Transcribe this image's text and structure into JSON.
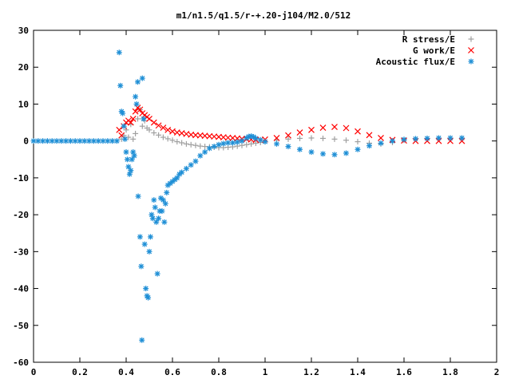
{
  "chart_data": {
    "type": "scatter",
    "title": "m1/n1.5/q1.5/r-+.20-j104/M2.0/512",
    "xlabel": "",
    "ylabel": "",
    "xlim": [
      0,
      2
    ],
    "ylim": [
      -60,
      30
    ],
    "x_ticks": [
      "0",
      "0.2",
      "0.4",
      "0.6",
      "0.8",
      "1",
      "1.2",
      "1.4",
      "1.6",
      "1.8",
      "2"
    ],
    "y_ticks": [
      "30",
      "20",
      "10",
      "0",
      "-10",
      "-20",
      "-30",
      "-40",
      "-50",
      "-60"
    ],
    "legend_position": "top-right",
    "grid": false,
    "series": [
      {
        "name": "R stress/E",
        "marker": "plus",
        "color": "#a0a0a0",
        "points": [
          [
            0.38,
            0.5
          ],
          [
            0.39,
            1.5
          ],
          [
            0.4,
            3.0
          ],
          [
            0.41,
            1.0
          ],
          [
            0.42,
            4.5
          ],
          [
            0.43,
            0.5
          ],
          [
            0.44,
            2.0
          ],
          [
            0.45,
            6.0
          ],
          [
            0.46,
            8.5
          ],
          [
            0.47,
            4.0
          ],
          [
            0.48,
            5.5
          ],
          [
            0.49,
            3.5
          ],
          [
            0.5,
            3.0
          ],
          [
            0.52,
            2.2
          ],
          [
            0.54,
            1.6
          ],
          [
            0.56,
            1.0
          ],
          [
            0.58,
            0.6
          ],
          [
            0.6,
            0.2
          ],
          [
            0.62,
            -0.2
          ],
          [
            0.64,
            -0.5
          ],
          [
            0.66,
            -0.8
          ],
          [
            0.68,
            -1.0
          ],
          [
            0.7,
            -1.2
          ],
          [
            0.72,
            -1.4
          ],
          [
            0.74,
            -1.5
          ],
          [
            0.76,
            -1.6
          ],
          [
            0.78,
            -1.7
          ],
          [
            0.8,
            -1.8
          ],
          [
            0.82,
            -1.8
          ],
          [
            0.84,
            -1.7
          ],
          [
            0.86,
            -1.6
          ],
          [
            0.88,
            -1.4
          ],
          [
            0.9,
            -1.2
          ],
          [
            0.92,
            -1.0
          ],
          [
            0.94,
            -0.8
          ],
          [
            0.96,
            -0.6
          ],
          [
            0.98,
            -0.4
          ],
          [
            1.0,
            -0.2
          ],
          [
            1.05,
            0.2
          ],
          [
            1.1,
            0.5
          ],
          [
            1.15,
            0.7
          ],
          [
            1.2,
            0.8
          ],
          [
            1.25,
            0.7
          ],
          [
            1.3,
            0.5
          ],
          [
            1.35,
            0.2
          ],
          [
            1.4,
            -0.2
          ],
          [
            1.45,
            -0.6
          ],
          [
            1.5,
            -0.8
          ],
          [
            1.55,
            -0.4
          ],
          [
            1.6,
            0.2
          ],
          [
            1.65,
            0.5
          ],
          [
            1.7,
            0.6
          ],
          [
            1.75,
            0.7
          ],
          [
            1.8,
            0.7
          ],
          [
            1.85,
            0.7
          ]
        ]
      },
      {
        "name": "G work/E",
        "marker": "cross",
        "color": "#ff0000",
        "points": [
          [
            0.37,
            3.0
          ],
          [
            0.38,
            1.5
          ],
          [
            0.39,
            4.0
          ],
          [
            0.4,
            5.0
          ],
          [
            0.41,
            5.5
          ],
          [
            0.42,
            5.0
          ],
          [
            0.43,
            6.0
          ],
          [
            0.44,
            8.0
          ],
          [
            0.45,
            9.0
          ],
          [
            0.46,
            8.5
          ],
          [
            0.47,
            7.5
          ],
          [
            0.48,
            7.0
          ],
          [
            0.49,
            6.5
          ],
          [
            0.5,
            6.0
          ],
          [
            0.52,
            5.0
          ],
          [
            0.54,
            4.2
          ],
          [
            0.56,
            3.6
          ],
          [
            0.58,
            3.0
          ],
          [
            0.6,
            2.6
          ],
          [
            0.62,
            2.3
          ],
          [
            0.64,
            2.1
          ],
          [
            0.66,
            1.9
          ],
          [
            0.68,
            1.7
          ],
          [
            0.7,
            1.6
          ],
          [
            0.72,
            1.5
          ],
          [
            0.74,
            1.4
          ],
          [
            0.76,
            1.3
          ],
          [
            0.78,
            1.2
          ],
          [
            0.8,
            1.1
          ],
          [
            0.82,
            1.0
          ],
          [
            0.84,
            0.9
          ],
          [
            0.86,
            0.8
          ],
          [
            0.88,
            0.7
          ],
          [
            0.9,
            0.6
          ],
          [
            0.92,
            0.5
          ],
          [
            0.94,
            0.4
          ],
          [
            0.96,
            0.3
          ],
          [
            0.98,
            0.3
          ],
          [
            1.0,
            0.4
          ],
          [
            1.05,
            0.8
          ],
          [
            1.1,
            1.5
          ],
          [
            1.15,
            2.3
          ],
          [
            1.2,
            3.0
          ],
          [
            1.25,
            3.6
          ],
          [
            1.3,
            3.8
          ],
          [
            1.35,
            3.5
          ],
          [
            1.4,
            2.6
          ],
          [
            1.45,
            1.6
          ],
          [
            1.5,
            0.8
          ],
          [
            1.55,
            0.3
          ],
          [
            1.6,
            0.1
          ],
          [
            1.65,
            0.0
          ],
          [
            1.7,
            0.0
          ],
          [
            1.75,
            0.0
          ],
          [
            1.8,
            0.0
          ],
          [
            1.85,
            0.0
          ]
        ]
      },
      {
        "name": "Acoustic flux/E",
        "marker": "star",
        "color": "#1f8fd6",
        "points": [
          [
            0.0,
            0.0
          ],
          [
            0.02,
            0.0
          ],
          [
            0.04,
            0.0
          ],
          [
            0.06,
            0.0
          ],
          [
            0.08,
            0.0
          ],
          [
            0.1,
            0.0
          ],
          [
            0.12,
            0.0
          ],
          [
            0.14,
            0.0
          ],
          [
            0.16,
            0.0
          ],
          [
            0.18,
            0.0
          ],
          [
            0.2,
            0.0
          ],
          [
            0.22,
            0.0
          ],
          [
            0.24,
            0.0
          ],
          [
            0.26,
            0.0
          ],
          [
            0.28,
            0.0
          ],
          [
            0.3,
            0.0
          ],
          [
            0.32,
            0.0
          ],
          [
            0.34,
            0.0
          ],
          [
            0.36,
            0.0
          ],
          [
            0.37,
            24.0
          ],
          [
            0.375,
            15.0
          ],
          [
            0.38,
            8.0
          ],
          [
            0.385,
            7.5
          ],
          [
            0.39,
            4.0
          ],
          [
            0.395,
            0.5
          ],
          [
            0.4,
            -3.0
          ],
          [
            0.405,
            -5.0
          ],
          [
            0.41,
            -7.0
          ],
          [
            0.415,
            -9.0
          ],
          [
            0.42,
            -8.0
          ],
          [
            0.425,
            -5.0
          ],
          [
            0.43,
            -3.0
          ],
          [
            0.435,
            -4.0
          ],
          [
            0.44,
            12.0
          ],
          [
            0.445,
            10.0
          ],
          [
            0.45,
            16.0
          ],
          [
            0.452,
            -15.0
          ],
          [
            0.46,
            -26.0
          ],
          [
            0.465,
            -34.0
          ],
          [
            0.468,
            -54.0
          ],
          [
            0.47,
            17.0
          ],
          [
            0.475,
            6.0
          ],
          [
            0.48,
            -28.0
          ],
          [
            0.485,
            -40.0
          ],
          [
            0.49,
            -42.0
          ],
          [
            0.495,
            -42.5
          ],
          [
            0.5,
            -30.0
          ],
          [
            0.505,
            -26.0
          ],
          [
            0.51,
            -20.0
          ],
          [
            0.515,
            -21.0
          ],
          [
            0.52,
            -16.0
          ],
          [
            0.525,
            -18.0
          ],
          [
            0.53,
            -22.0
          ],
          [
            0.535,
            -36.0
          ],
          [
            0.54,
            -21.0
          ],
          [
            0.545,
            -19.0
          ],
          [
            0.55,
            -15.5
          ],
          [
            0.555,
            -19.0
          ],
          [
            0.56,
            -16.0
          ],
          [
            0.565,
            -22.0
          ],
          [
            0.57,
            -17.0
          ],
          [
            0.575,
            -14.0
          ],
          [
            0.58,
            -12.0
          ],
          [
            0.59,
            -11.5
          ],
          [
            0.6,
            -11.0
          ],
          [
            0.61,
            -10.5
          ],
          [
            0.62,
            -10.0
          ],
          [
            0.63,
            -9.0
          ],
          [
            0.64,
            -8.5
          ],
          [
            0.66,
            -7.5
          ],
          [
            0.68,
            -6.5
          ],
          [
            0.7,
            -5.5
          ],
          [
            0.72,
            -4.0
          ],
          [
            0.74,
            -3.0
          ],
          [
            0.76,
            -2.0
          ],
          [
            0.78,
            -1.5
          ],
          [
            0.8,
            -1.0
          ],
          [
            0.82,
            -0.7
          ],
          [
            0.84,
            -0.5
          ],
          [
            0.86,
            -0.5
          ],
          [
            0.88,
            -0.3
          ],
          [
            0.9,
            0.0
          ],
          [
            0.92,
            0.8
          ],
          [
            0.93,
            1.2
          ],
          [
            0.94,
            1.3
          ],
          [
            0.95,
            1.1
          ],
          [
            0.96,
            0.7
          ],
          [
            0.98,
            0.3
          ],
          [
            1.0,
            -0.2
          ],
          [
            1.05,
            -0.8
          ],
          [
            1.1,
            -1.5
          ],
          [
            1.15,
            -2.3
          ],
          [
            1.2,
            -3.0
          ],
          [
            1.25,
            -3.5
          ],
          [
            1.3,
            -3.7
          ],
          [
            1.35,
            -3.3
          ],
          [
            1.4,
            -2.3
          ],
          [
            1.45,
            -1.3
          ],
          [
            1.5,
            -0.6
          ],
          [
            1.55,
            0.0
          ],
          [
            1.6,
            0.4
          ],
          [
            1.65,
            0.6
          ],
          [
            1.7,
            0.7
          ],
          [
            1.75,
            0.8
          ],
          [
            1.8,
            0.8
          ],
          [
            1.85,
            0.8
          ]
        ]
      }
    ]
  }
}
